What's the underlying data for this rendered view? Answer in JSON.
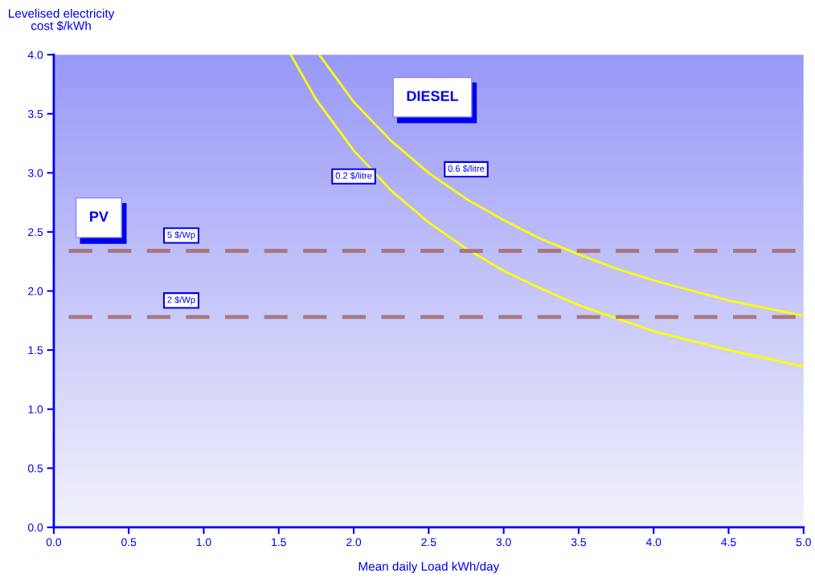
{
  "chart_data": {
    "type": "line",
    "ylabel": "Levelised electricity\ncost $/kWh",
    "xlabel": "Mean daily Load kWh/day",
    "annotations": [
      "DIESEL",
      "PV"
    ],
    "series": [
      {
        "name": "0.2 $/litre",
        "color": "#ffff00",
        "line_style": "solid",
        "x": [
          1.58,
          1.75,
          2.0,
          2.25,
          2.5,
          2.75,
          3.0,
          3.25,
          3.5,
          3.75,
          4.0,
          4.5,
          5.0
        ],
        "values": [
          4.0,
          3.62,
          3.19,
          2.85,
          2.58,
          2.36,
          2.17,
          2.02,
          1.88,
          1.77,
          1.66,
          1.5,
          1.36
        ]
      },
      {
        "name": "0.6 $/litre",
        "color": "#ffff00",
        "line_style": "solid",
        "x": [
          1.77,
          2.0,
          2.25,
          2.5,
          2.75,
          3.0,
          3.25,
          3.5,
          3.75,
          4.0,
          4.5,
          5.0
        ],
        "values": [
          4.0,
          3.6,
          3.27,
          3.0,
          2.78,
          2.6,
          2.44,
          2.31,
          2.19,
          2.09,
          1.92,
          1.79
        ]
      },
      {
        "name": "5 $/Wp",
        "color": "#a87880",
        "line_style": "dashed",
        "x": [
          0.1,
          5.0
        ],
        "values": [
          2.34,
          2.34
        ]
      },
      {
        "name": "2 $/Wp",
        "color": "#a87880",
        "line_style": "dashed",
        "x": [
          0.1,
          5.0
        ],
        "values": [
          1.78,
          1.78
        ]
      }
    ],
    "xlim": [
      0,
      5
    ],
    "ylim": [
      0,
      4
    ],
    "xticks": [
      {
        "value": 0,
        "label": "0.0"
      },
      {
        "value": 0.5,
        "label": "0.5"
      },
      {
        "value": 1,
        "label": "1.0"
      },
      {
        "value": 1.5,
        "label": "1.5"
      },
      {
        "value": 2,
        "label": "2.0"
      },
      {
        "value": 2.5,
        "label": "2.5"
      },
      {
        "value": 3,
        "label": "3.0"
      },
      {
        "value": 3.5,
        "label": "3.5"
      },
      {
        "value": 4,
        "label": "4.0"
      },
      {
        "value": 4.5,
        "label": "4.5"
      },
      {
        "value": 5,
        "label": "5.0"
      }
    ],
    "yticks": [
      {
        "value": 0,
        "label": "0.0"
      },
      {
        "value": 0.5,
        "label": "0.5"
      },
      {
        "value": 1,
        "label": "1.0"
      },
      {
        "value": 1.5,
        "label": "1.5"
      },
      {
        "value": 2,
        "label": "2.0"
      },
      {
        "value": 2.5,
        "label": "2.5"
      },
      {
        "value": 3,
        "label": "3.0"
      },
      {
        "value": 3.5,
        "label": "3.5"
      },
      {
        "value": 4,
        "label": "4.0"
      }
    ],
    "grid": false,
    "legend": false,
    "marker": "none"
  }
}
